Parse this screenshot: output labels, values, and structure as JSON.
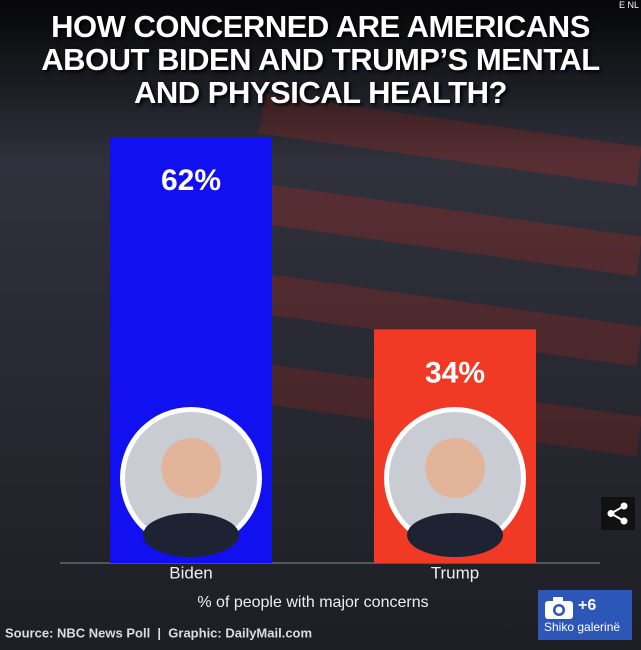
{
  "chart_data": {
    "type": "bar",
    "title": "HOW CONCERNED ARE AMERICANS ABOUT BIDEN AND TRUMP’S MENTAL AND PHYSICAL HEALTH?",
    "categories": [
      "Biden",
      "Trump"
    ],
    "values": [
      62,
      34
    ],
    "value_labels": [
      "62%",
      "34%"
    ],
    "colors": [
      "#1010f0",
      "#f03a26"
    ],
    "xlabel": "% of people with major concerns",
    "source": "Source: NBC News Poll  |  Graphic: DailyMail.com"
  },
  "ui": {
    "corner_label": "E NL",
    "gallery_count": "+6",
    "gallery_label": "Shiko galerinë"
  }
}
